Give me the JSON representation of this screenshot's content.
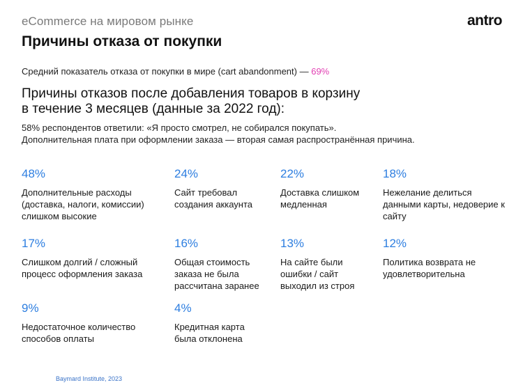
{
  "header": {
    "kicker": "eCommerce на мировом рынке",
    "logo": "antro",
    "title": "Причины отказа от покупки"
  },
  "average": {
    "text": "Средний показатель отказа от покупки в мире (cart abandonment) — ",
    "value": "69%",
    "accent_color": "#e23fb3"
  },
  "section": {
    "subhead_line1": "Причины отказов после добавления товаров в корзину",
    "subhead_line2": "в течение 3 месяцев (данные за 2022 год):",
    "note_line1": "58% респондентов ответили: «Я просто смотрел, не собирался покупать».",
    "note_line2": "Дополнительная плата при оформлении заказа — вторая самая распространённая причина."
  },
  "stats": [
    {
      "value": "48%",
      "label": "Дополнительные расходы (доставка, налоги, комиссии) слишком высокие"
    },
    {
      "value": "24%",
      "label": "Сайт требовал создания аккаунта"
    },
    {
      "value": "22%",
      "label": "Доставка слишком медленная"
    },
    {
      "value": "18%",
      "label": "Нежелание делиться данными карты, недоверие к сайту"
    },
    {
      "value": "17%",
      "label": "Слишком долгий / сложный процесс оформления заказа"
    },
    {
      "value": "16%",
      "label": "Общая стоимость заказа не была рассчитана заранее"
    },
    {
      "value": "13%",
      "label": "На сайте были ошибки / сайт выходил из строя"
    },
    {
      "value": "12%",
      "label": "Политика возврата не удовлетворительна"
    },
    {
      "value": "9%",
      "label": "Недостаточное количество способов оплаты"
    },
    {
      "value": "4%",
      "label": "Кредитная карта была отклонена"
    }
  ],
  "colors": {
    "stat_value": "#2d7ee0"
  },
  "footer": {
    "source": "Baymard Institute, 2023"
  }
}
